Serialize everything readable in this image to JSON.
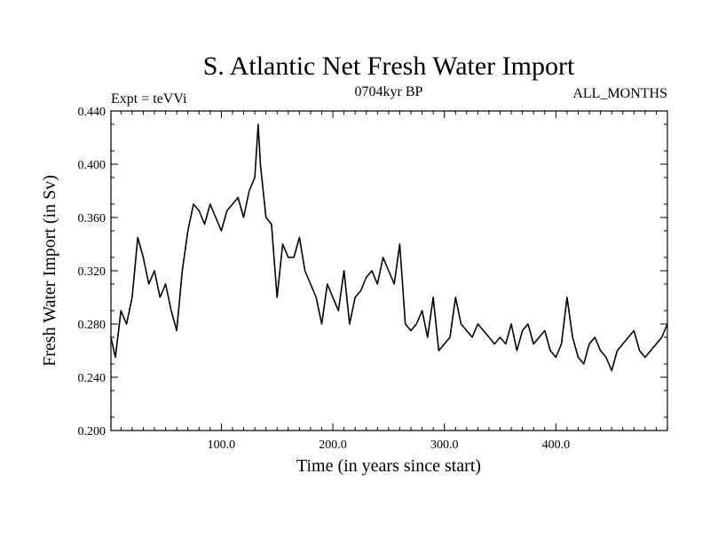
{
  "chart_data": {
    "type": "line",
    "title": "S. Atlantic Net Fresh Water Import",
    "subtitle_left": "Expt = teVVi",
    "subtitle_center": "0704kyr BP",
    "subtitle_right": "ALL_MONTHS",
    "xlabel": "Time (in years since start)",
    "ylabel": "Fresh Water Import (in Sv)",
    "xlim": [
      1,
      500
    ],
    "ylim": [
      0.2,
      0.44
    ],
    "x_ticks": [
      100,
      200,
      300,
      400
    ],
    "x_tick_labels": [
      "100.0",
      "200.0",
      "300.0",
      "400.0"
    ],
    "y_ticks": [
      0.2,
      0.24,
      0.28,
      0.32,
      0.36,
      0.4,
      0.44
    ],
    "y_tick_labels": [
      "0.200",
      "0.240",
      "0.280",
      "0.320",
      "0.360",
      "0.400",
      "0.440"
    ],
    "series": [
      {
        "name": "Fresh Water Import",
        "color": "#000000",
        "x": [
          1,
          5,
          10,
          15,
          20,
          25,
          30,
          35,
          40,
          45,
          50,
          55,
          60,
          65,
          70,
          75,
          80,
          85,
          90,
          95,
          100,
          105,
          110,
          115,
          120,
          125,
          130,
          133,
          135,
          140,
          145,
          150,
          155,
          160,
          165,
          170,
          175,
          180,
          185,
          190,
          195,
          200,
          205,
          210,
          215,
          220,
          225,
          230,
          235,
          240,
          245,
          250,
          255,
          260,
          265,
          270,
          275,
          280,
          285,
          290,
          295,
          300,
          305,
          310,
          315,
          320,
          325,
          330,
          335,
          340,
          345,
          350,
          355,
          360,
          365,
          370,
          375,
          380,
          385,
          390,
          395,
          400,
          405,
          410,
          415,
          420,
          425,
          430,
          435,
          440,
          445,
          450,
          455,
          460,
          465,
          470,
          475,
          480,
          485,
          490,
          495,
          500
        ],
        "y": [
          0.27,
          0.255,
          0.29,
          0.28,
          0.3,
          0.345,
          0.33,
          0.31,
          0.32,
          0.3,
          0.31,
          0.29,
          0.275,
          0.32,
          0.35,
          0.37,
          0.365,
          0.355,
          0.37,
          0.36,
          0.35,
          0.365,
          0.37,
          0.375,
          0.36,
          0.38,
          0.39,
          0.43,
          0.4,
          0.36,
          0.355,
          0.3,
          0.34,
          0.33,
          0.33,
          0.345,
          0.32,
          0.31,
          0.3,
          0.28,
          0.31,
          0.3,
          0.29,
          0.32,
          0.28,
          0.3,
          0.305,
          0.315,
          0.32,
          0.31,
          0.33,
          0.32,
          0.31,
          0.34,
          0.28,
          0.275,
          0.28,
          0.29,
          0.27,
          0.3,
          0.26,
          0.265,
          0.27,
          0.3,
          0.28,
          0.275,
          0.27,
          0.28,
          0.275,
          0.27,
          0.265,
          0.27,
          0.265,
          0.28,
          0.26,
          0.275,
          0.28,
          0.265,
          0.27,
          0.275,
          0.26,
          0.255,
          0.265,
          0.3,
          0.27,
          0.255,
          0.25,
          0.265,
          0.27,
          0.26,
          0.255,
          0.245,
          0.26,
          0.265,
          0.27,
          0.275,
          0.26,
          0.255,
          0.26,
          0.265,
          0.27,
          0.28
        ]
      }
    ]
  }
}
